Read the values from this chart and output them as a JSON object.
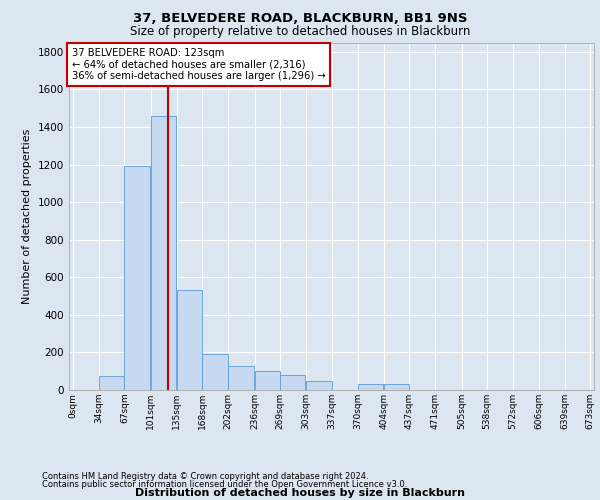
{
  "title1": "37, BELVEDERE ROAD, BLACKBURN, BB1 9NS",
  "title2": "Size of property relative to detached houses in Blackburn",
  "xlabel": "Distribution of detached houses by size in Blackburn",
  "ylabel": "Number of detached properties",
  "footnote1": "Contains HM Land Registry data © Crown copyright and database right 2024.",
  "footnote2": "Contains public sector information licensed under the Open Government Licence v3.0.",
  "bin_labels": [
    "0sqm",
    "34sqm",
    "67sqm",
    "101sqm",
    "135sqm",
    "168sqm",
    "202sqm",
    "236sqm",
    "269sqm",
    "303sqm",
    "337sqm",
    "370sqm",
    "404sqm",
    "437sqm",
    "471sqm",
    "505sqm",
    "538sqm",
    "572sqm",
    "606sqm",
    "639sqm",
    "673sqm"
  ],
  "bar_values": [
    0,
    75,
    1190,
    1460,
    530,
    190,
    130,
    100,
    80,
    50,
    0,
    30,
    30,
    0,
    0,
    0,
    0,
    0,
    0,
    0
  ],
  "bar_color": "#c6d9f0",
  "bar_edge_color": "#5b9bd5",
  "property_sqm": 123,
  "red_line_color": "#c00000",
  "annotation_line1": "37 BELVEDERE ROAD: 123sqm",
  "annotation_line2": "← 64% of detached houses are smaller (2,316)",
  "annotation_line3": "36% of semi-detached houses are larger (1,296) →",
  "annotation_box_color": "#ffffff",
  "annotation_box_edge": "#c00000",
  "ylim": [
    0,
    1850
  ],
  "bin_starts": [
    0,
    34,
    67,
    101,
    135,
    168,
    202,
    236,
    269,
    303,
    337,
    370,
    404,
    437,
    471,
    505,
    538,
    572,
    606,
    639
  ],
  "bin_width": 33,
  "background_color": "#dce6f1",
  "plot_bg_color": "#dce6f1",
  "grid_color": "#ffffff",
  "yticks": [
    0,
    200,
    400,
    600,
    800,
    1000,
    1200,
    1400,
    1600,
    1800
  ]
}
